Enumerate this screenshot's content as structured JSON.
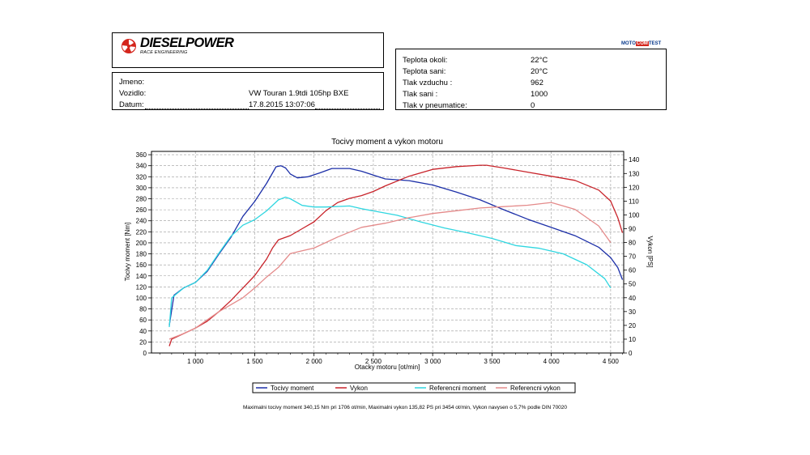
{
  "header": {
    "logo_text": "DIESELPOWER",
    "logo_sub": "RACE ENGINEERING",
    "badge_left": "MOTO",
    "badge_mid": "COM",
    "badge_right": "TEST"
  },
  "vehicle": {
    "name_label": "Jmeno:",
    "name_value": "",
    "vehicle_label": "Vozidlo:",
    "vehicle_value": "VW Touran 1.9tdi 105hp BXE",
    "date_label": "Datum:",
    "date_value": "17.8.2015 13:07:06"
  },
  "conditions": [
    {
      "label": "Teplota okoli:",
      "value": "22°C"
    },
    {
      "label": "Teplota sani:",
      "value": "20°C"
    },
    {
      "label": "Tlak vzduchu :",
      "value": "962"
    },
    {
      "label": "Tlak sani :",
      "value": "1000"
    },
    {
      "label": "Tlak v pneumatice:",
      "value": "0"
    }
  ],
  "colors": {
    "torque": "#1c2fa8",
    "power": "#c8232a",
    "ref_torque": "#2fd6e0",
    "ref_power": "#e48a8a"
  },
  "chart_data": {
    "type": "line",
    "title": "Tocivy moment a vykon motoru",
    "xlabel": "Otacky motoru [ot/min]",
    "ylabel_left": "Tocivy moment [Nm]",
    "ylabel_right": "Vykon [PS]",
    "xlim": [
      630,
      4610
    ],
    "ylim_left": [
      0,
      366
    ],
    "ylim_right": [
      0,
      146
    ],
    "x_ticks": [
      1000,
      1500,
      2000,
      2500,
      3000,
      3500,
      4000,
      4500
    ],
    "x_tick_labels": [
      "1 000",
      "1 500",
      "2 000",
      "2 500",
      "3 000",
      "3 500",
      "4 000",
      "4 500"
    ],
    "y_left_ticks": [
      0,
      20,
      40,
      60,
      80,
      100,
      120,
      140,
      160,
      180,
      200,
      220,
      240,
      260,
      280,
      300,
      320,
      340,
      360
    ],
    "y_right_ticks": [
      0,
      10,
      20,
      30,
      40,
      50,
      60,
      70,
      80,
      90,
      100,
      110,
      120,
      130,
      140
    ],
    "grid": true,
    "legend_position": "bottom",
    "series": [
      {
        "name": "Tocivy moment",
        "axis": "left",
        "color_key": "torque",
        "points": [
          [
            780,
            50
          ],
          [
            820,
            105
          ],
          [
            900,
            118
          ],
          [
            1000,
            128
          ],
          [
            1100,
            148
          ],
          [
            1200,
            180
          ],
          [
            1300,
            210
          ],
          [
            1400,
            248
          ],
          [
            1500,
            275
          ],
          [
            1600,
            308
          ],
          [
            1680,
            338
          ],
          [
            1720,
            340
          ],
          [
            1760,
            336
          ],
          [
            1800,
            325
          ],
          [
            1860,
            318
          ],
          [
            1950,
            320
          ],
          [
            2050,
            327
          ],
          [
            2150,
            335
          ],
          [
            2300,
            335
          ],
          [
            2400,
            330
          ],
          [
            2500,
            323
          ],
          [
            2600,
            316
          ],
          [
            2800,
            313
          ],
          [
            3000,
            305
          ],
          [
            3200,
            292
          ],
          [
            3400,
            278
          ],
          [
            3600,
            260
          ],
          [
            3800,
            243
          ],
          [
            4000,
            228
          ],
          [
            4200,
            213
          ],
          [
            4400,
            192
          ],
          [
            4500,
            173
          ],
          [
            4560,
            155
          ],
          [
            4600,
            133
          ]
        ]
      },
      {
        "name": "Vykon",
        "axis": "right",
        "color_key": "power",
        "points": [
          [
            780,
            5
          ],
          [
            800,
            10
          ],
          [
            900,
            14
          ],
          [
            1000,
            18
          ],
          [
            1100,
            23
          ],
          [
            1200,
            30
          ],
          [
            1300,
            38
          ],
          [
            1400,
            47
          ],
          [
            1500,
            56
          ],
          [
            1600,
            68
          ],
          [
            1650,
            76
          ],
          [
            1700,
            82
          ],
          [
            1800,
            85
          ],
          [
            1900,
            90
          ],
          [
            2000,
            95
          ],
          [
            2100,
            103
          ],
          [
            2200,
            109
          ],
          [
            2300,
            112
          ],
          [
            2400,
            114
          ],
          [
            2500,
            117
          ],
          [
            2600,
            121
          ],
          [
            2800,
            128
          ],
          [
            3000,
            133
          ],
          [
            3200,
            135
          ],
          [
            3400,
            136
          ],
          [
            3454,
            136
          ],
          [
            3600,
            134
          ],
          [
            3800,
            131
          ],
          [
            4000,
            128
          ],
          [
            4200,
            125
          ],
          [
            4400,
            118
          ],
          [
            4500,
            110
          ],
          [
            4560,
            98
          ],
          [
            4600,
            87
          ]
        ]
      },
      {
        "name": "Referencni moment",
        "axis": "left",
        "color_key": "ref_torque",
        "points": [
          [
            780,
            47
          ],
          [
            800,
            100
          ],
          [
            900,
            118
          ],
          [
            1000,
            128
          ],
          [
            1100,
            150
          ],
          [
            1200,
            182
          ],
          [
            1300,
            212
          ],
          [
            1400,
            232
          ],
          [
            1500,
            242
          ],
          [
            1600,
            258
          ],
          [
            1700,
            278
          ],
          [
            1760,
            283
          ],
          [
            1800,
            280
          ],
          [
            1900,
            268
          ],
          [
            2000,
            265
          ],
          [
            2100,
            265
          ],
          [
            2300,
            267
          ],
          [
            2400,
            262
          ],
          [
            2500,
            258
          ],
          [
            2700,
            250
          ],
          [
            2900,
            238
          ],
          [
            3100,
            227
          ],
          [
            3300,
            218
          ],
          [
            3500,
            208
          ],
          [
            3700,
            195
          ],
          [
            3900,
            190
          ],
          [
            4100,
            180
          ],
          [
            4300,
            160
          ],
          [
            4450,
            135
          ],
          [
            4500,
            118
          ]
        ]
      },
      {
        "name": "Referencni vykon",
        "axis": "right",
        "color_key": "ref_power",
        "points": [
          [
            780,
            10
          ],
          [
            900,
            14
          ],
          [
            1000,
            18
          ],
          [
            1200,
            30
          ],
          [
            1400,
            40
          ],
          [
            1500,
            47
          ],
          [
            1600,
            55
          ],
          [
            1700,
            62
          ],
          [
            1800,
            72
          ],
          [
            1900,
            74
          ],
          [
            2000,
            76
          ],
          [
            2200,
            84
          ],
          [
            2400,
            91
          ],
          [
            2600,
            94
          ],
          [
            2800,
            98
          ],
          [
            3000,
            101
          ],
          [
            3200,
            103
          ],
          [
            3400,
            105
          ],
          [
            3600,
            106
          ],
          [
            3800,
            107
          ],
          [
            4000,
            109
          ],
          [
            4200,
            104
          ],
          [
            4400,
            92
          ],
          [
            4500,
            80
          ]
        ]
      }
    ]
  },
  "footer": "Maximalni tocivy moment 340,15 Nm pri 1706 ot/min,  Maximalni vykon 135,82 PS pri 3454 ot/min,  Vykon navysen o 5,7% podle DIN 70020"
}
